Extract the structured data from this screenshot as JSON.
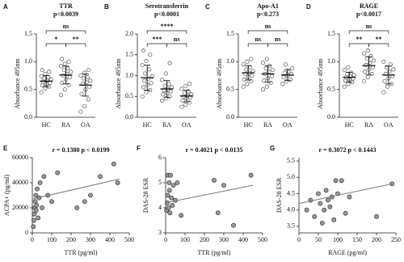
{
  "chart_data": [
    {
      "type": "dotplot",
      "panel": "A",
      "title": "TTR",
      "subtitle": "p<0.0039",
      "ylabel": "Absorbance 495nm",
      "color": "#555555",
      "categories": [
        "HC",
        "RA",
        "OA"
      ],
      "points": [
        [
          0.45,
          0.52,
          0.55,
          0.58,
          0.6,
          0.62,
          0.64,
          0.66,
          0.68,
          0.7,
          0.72,
          0.74,
          0.78,
          0.82,
          0.85
        ],
        [
          0.4,
          0.5,
          0.58,
          0.62,
          0.68,
          0.72,
          0.75,
          0.78,
          0.82,
          0.85,
          0.88,
          0.92,
          0.96,
          1.0,
          1.05
        ],
        [
          0.1,
          0.2,
          0.32,
          0.42,
          0.5,
          0.55,
          0.6,
          0.63,
          0.66,
          0.7,
          0.72,
          0.75,
          0.8,
          0.85
        ]
      ],
      "mean": [
        0.65,
        0.76,
        0.58
      ],
      "sd": [
        0.1,
        0.16,
        0.2
      ],
      "brackets": [
        {
          "pair": [
            "HC",
            "RA"
          ],
          "label": "*"
        },
        {
          "pair": [
            "RA",
            "OA"
          ],
          "label": "**"
        },
        {
          "pair": [
            "HC",
            "OA"
          ],
          "label": "ns"
        }
      ],
      "ylim": [
        0,
        1.5
      ],
      "yticks": [
        {
          "value": 0,
          "label": "0.0"
        },
        {
          "value": 0.5,
          "label": "0.5"
        },
        {
          "value": 1,
          "label": "1.0"
        },
        {
          "value": 1.5,
          "label": "1.5"
        }
      ]
    },
    {
      "type": "dotplot",
      "panel": "B",
      "title": "Serotransferrin",
      "subtitle": "p<0.0001",
      "ylabel": "Absorbance 495nm",
      "color": "#555555",
      "categories": [
        "HC",
        "RA",
        "OA"
      ],
      "points": [
        [
          0.5,
          0.6,
          0.65,
          0.72,
          0.78,
          0.82,
          0.88,
          0.92,
          0.98,
          1.05,
          1.15,
          1.25,
          1.35,
          1.5,
          1.6
        ],
        [
          0.4,
          0.45,
          0.5,
          0.55,
          0.58,
          0.62,
          0.65,
          0.68,
          0.72,
          0.75,
          0.8,
          0.9,
          1.05,
          1.3
        ],
        [
          0.25,
          0.3,
          0.35,
          0.4,
          0.45,
          0.48,
          0.5,
          0.52,
          0.55,
          0.58,
          0.62,
          0.68,
          0.75,
          0.8
        ]
      ],
      "mean": [
        0.95,
        0.68,
        0.51
      ],
      "sd": [
        0.3,
        0.2,
        0.14
      ],
      "brackets": [
        {
          "pair": [
            "HC",
            "RA"
          ],
          "label": "***"
        },
        {
          "pair": [
            "RA",
            "OA"
          ],
          "label": "ns"
        },
        {
          "pair": [
            "HC",
            "OA"
          ],
          "label": "****"
        }
      ],
      "ylim": [
        0,
        2
      ],
      "yticks": [
        {
          "value": 0,
          "label": "0.0"
        },
        {
          "value": 0.5,
          "label": "0.5"
        },
        {
          "value": 1,
          "label": "1.0"
        },
        {
          "value": 1.5,
          "label": "1.5"
        },
        {
          "value": 2,
          "label": "2.0"
        }
      ]
    },
    {
      "type": "dotplot",
      "panel": "C",
      "title": "Apo-A1",
      "subtitle": "p<0.273",
      "ylabel": "Absorbance 495nm",
      "color": "#555555",
      "categories": [
        "HC",
        "RA",
        "OA"
      ],
      "points": [
        [
          0.55,
          0.6,
          0.65,
          0.68,
          0.72,
          0.75,
          0.78,
          0.8,
          0.83,
          0.86,
          0.9,
          0.95,
          1.0,
          1.05
        ],
        [
          0.5,
          0.55,
          0.62,
          0.66,
          0.7,
          0.74,
          0.78,
          0.82,
          0.85,
          0.88,
          0.92,
          0.98,
          1.05
        ],
        [
          0.6,
          0.65,
          0.68,
          0.72,
          0.75,
          0.78,
          0.8,
          0.82,
          0.88,
          0.95
        ]
      ],
      "mean": [
        0.8,
        0.78,
        0.76
      ],
      "sd": [
        0.13,
        0.15,
        0.1
      ],
      "brackets": [
        {
          "pair": [
            "HC",
            "RA"
          ],
          "label": "ns"
        },
        {
          "pair": [
            "RA",
            "OA"
          ],
          "label": "ns"
        },
        {
          "pair": [
            "HC",
            "OA"
          ],
          "label": "ns"
        }
      ],
      "ylim": [
        0,
        1.5
      ],
      "yticks": [
        {
          "value": 0,
          "label": "0.0"
        },
        {
          "value": 0.5,
          "label": "0.5"
        },
        {
          "value": 1,
          "label": "1.0"
        },
        {
          "value": 1.5,
          "label": "1.5"
        }
      ]
    },
    {
      "type": "dotplot",
      "panel": "D",
      "title": "RAGE",
      "subtitle": "p<0.0017",
      "ylabel": "Absorbance 495nm",
      "color": "#555555",
      "categories": [
        "HC",
        "RA",
        "OA"
      ],
      "points": [
        [
          0.55,
          0.6,
          0.63,
          0.66,
          0.68,
          0.7,
          0.72,
          0.74,
          0.76,
          0.78,
          0.8,
          0.85,
          0.9
        ],
        [
          0.65,
          0.72,
          0.78,
          0.82,
          0.86,
          0.9,
          0.94,
          0.98,
          1.02,
          1.06,
          1.1,
          1.15,
          1.2
        ],
        [
          0.45,
          0.55,
          0.6,
          0.65,
          0.7,
          0.74,
          0.78,
          0.82,
          0.86,
          0.9,
          0.95,
          1.0
        ]
      ],
      "mean": [
        0.72,
        0.93,
        0.76
      ],
      "sd": [
        0.09,
        0.16,
        0.16
      ],
      "brackets": [
        {
          "pair": [
            "HC",
            "RA"
          ],
          "label": "**"
        },
        {
          "pair": [
            "RA",
            "OA"
          ],
          "label": "**"
        },
        {
          "pair": [
            "HC",
            "OA"
          ],
          "label": "ns"
        }
      ],
      "ylim": [
        0,
        1.5
      ],
      "yticks": [
        {
          "value": 0,
          "label": "0.0"
        },
        {
          "value": 0.5,
          "label": "0.5"
        },
        {
          "value": 1,
          "label": "1.0"
        },
        {
          "value": 1.5,
          "label": "1.5"
        }
      ]
    },
    {
      "type": "scatter",
      "panel": "E",
      "title": "r = 0.1380  p < 0.0199",
      "xlabel": "TTR (pg/ml)",
      "ylabel": "ACPA+ (pg/ml)",
      "color": "#999999",
      "x": [
        5,
        8,
        10,
        12,
        15,
        18,
        20,
        22,
        25,
        30,
        35,
        40,
        50,
        60,
        80,
        100,
        130,
        230,
        270,
        300,
        350,
        420,
        440
      ],
      "y": [
        5000,
        10000,
        15000,
        20000,
        25000,
        30000,
        18000,
        22000,
        35000,
        12000,
        28000,
        40000,
        20000,
        45000,
        30000,
        25000,
        48000,
        20000,
        25000,
        30000,
        45000,
        55000,
        40000
      ],
      "fit": {
        "x": [
          0,
          450
        ],
        "y": [
          27000,
          43000
        ]
      },
      "xlim": [
        0,
        500
      ],
      "xticks": [
        0,
        100,
        200,
        300,
        400,
        500
      ],
      "ylim": [
        0,
        60000
      ],
      "yticks": [
        0,
        20000,
        40000,
        60000
      ]
    },
    {
      "type": "scatter",
      "panel": "F",
      "title": "r = 0.4021  p < 0.0135",
      "xlabel": "TTR (pg/ml)",
      "ylabel": "DAS-28 ESR",
      "color": "#999999",
      "x": [
        5,
        8,
        10,
        12,
        15,
        18,
        20,
        22,
        25,
        30,
        35,
        40,
        50,
        60,
        80,
        250,
        270,
        300,
        350,
        440
      ],
      "y": [
        3.9,
        4.2,
        4.5,
        5.3,
        4.0,
        5.0,
        4.7,
        3.8,
        5.3,
        4.4,
        4.1,
        4.9,
        4.3,
        5.0,
        3.7,
        5.1,
        3.8,
        4.9,
        3.3,
        5.3
      ],
      "fit": {
        "x": [
          0,
          450
        ],
        "y": [
          4.2,
          4.9
        ]
      },
      "xlim": [
        0,
        500
      ],
      "xticks": [
        0,
        100,
        200,
        300,
        400,
        500
      ],
      "ylim": [
        3,
        6
      ],
      "yticks": [
        3,
        4,
        5,
        6
      ]
    },
    {
      "type": "scatter",
      "panel": "G",
      "title": "r = 0.3072  p < 0.1443",
      "xlabel": "RAGE (pg/ml)",
      "ylabel": "DAS-28 ESR",
      "color": "#999999",
      "x": [
        20,
        30,
        40,
        50,
        55,
        60,
        65,
        70,
        75,
        80,
        85,
        90,
        95,
        100,
        110,
        120,
        130,
        200,
        240
      ],
      "y": [
        4.0,
        4.3,
        3.8,
        4.5,
        4.2,
        3.6,
        4.0,
        4.6,
        4.3,
        4.1,
        4.4,
        3.7,
        4.9,
        4.5,
        4.9,
        3.9,
        4.4,
        3.8,
        4.8
      ],
      "fit": {
        "x": [
          0,
          240
        ],
        "y": [
          4.2,
          4.8
        ]
      },
      "xlim": [
        0,
        250
      ],
      "xticks": [
        0,
        50,
        100,
        150,
        200,
        250
      ],
      "ylim": [
        3.3,
        5.6
      ],
      "yticks": [
        3.5,
        {
          "value": 4,
          "label": "4.0"
        },
        4.5,
        {
          "value": 5,
          "label": "5.0"
        },
        5.5
      ]
    }
  ]
}
